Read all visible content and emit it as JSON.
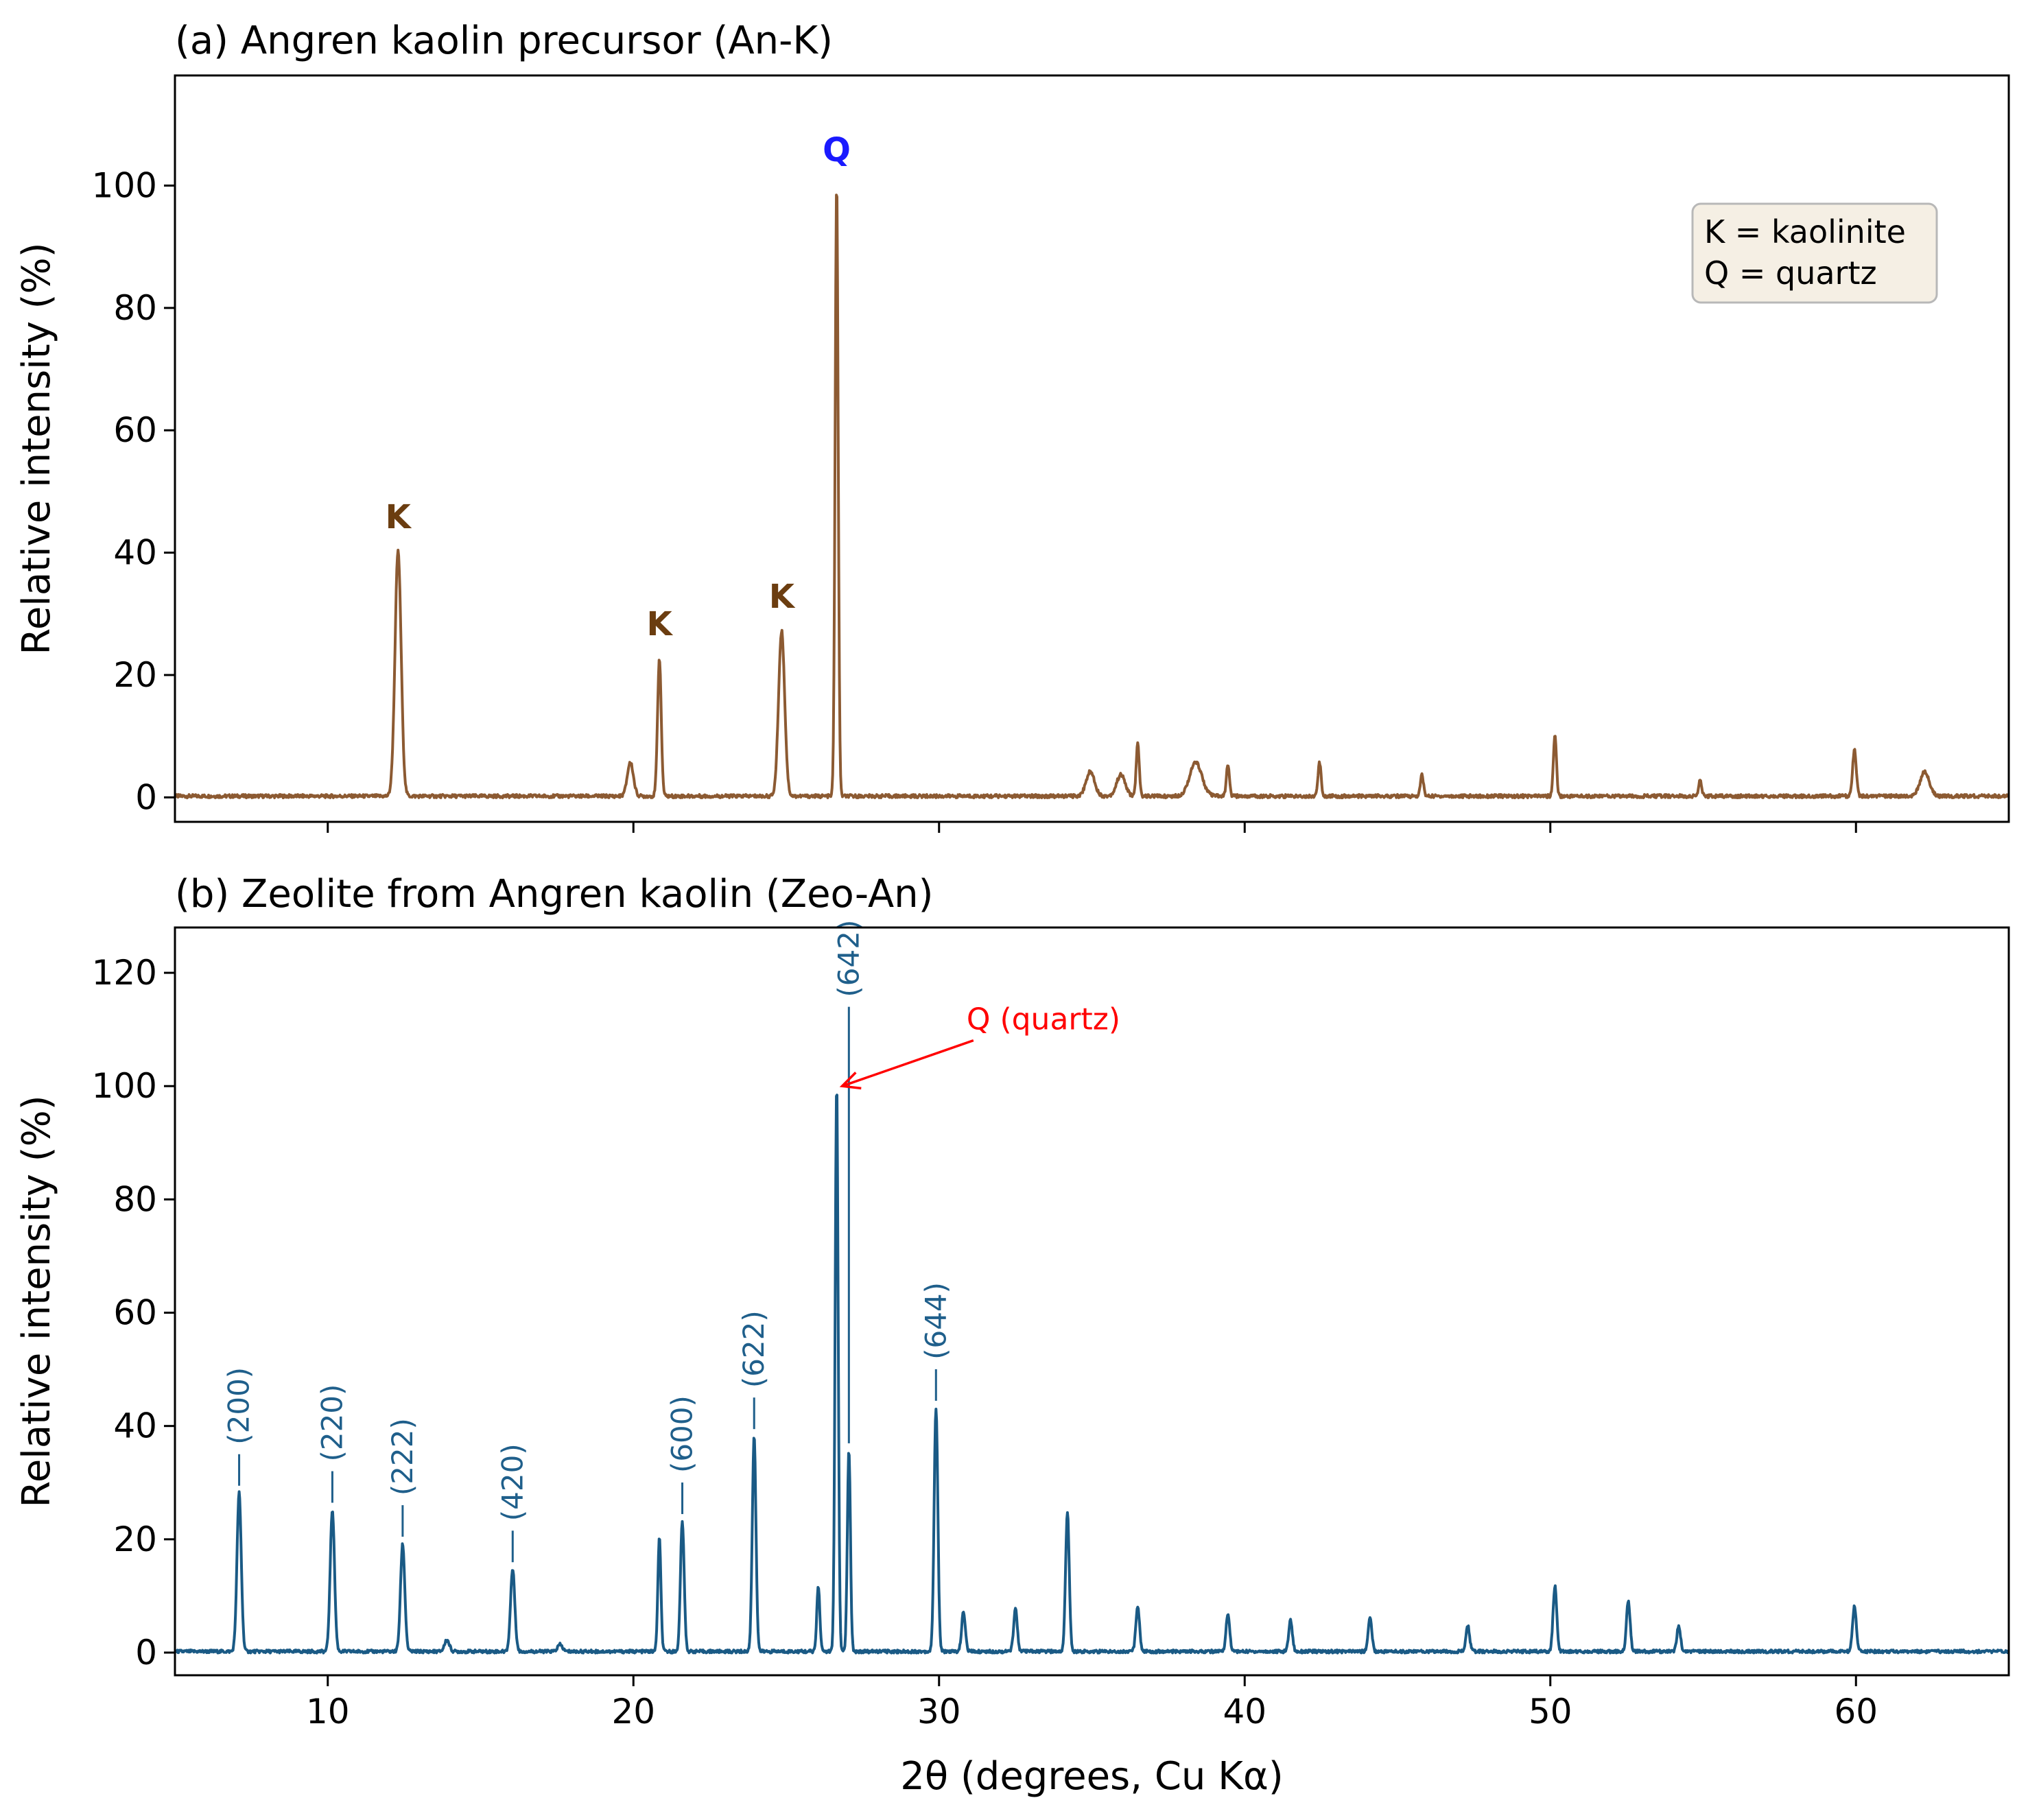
{
  "chart_data": [
    {
      "type": "line",
      "title": "(a) Angren kaolin precursor (An-K)",
      "xlabel": "",
      "ylabel": "Relative intensity (%)",
      "xlim": [
        5,
        65
      ],
      "ylim": [
        -4,
        118
      ],
      "yticks": [
        0,
        20,
        40,
        60,
        80,
        100
      ],
      "xticks": [
        10,
        20,
        30,
        40,
        50,
        60
      ],
      "show_xtick_labels": false,
      "grid": false,
      "color": "#8c5a32",
      "baseline": 0.2,
      "peaks": [
        {
          "x": 12.3,
          "y": 40,
          "w": 0.1
        },
        {
          "x": 19.9,
          "y": 5.5,
          "w": 0.1
        },
        {
          "x": 20.85,
          "y": 22.5,
          "w": 0.06
        },
        {
          "x": 24.85,
          "y": 27,
          "w": 0.1
        },
        {
          "x": 26.65,
          "y": 100,
          "w": 0.05
        },
        {
          "x": 34.95,
          "y": 4,
          "w": 0.14
        },
        {
          "x": 35.95,
          "y": 3.5,
          "w": 0.14
        },
        {
          "x": 36.5,
          "y": 8.5,
          "w": 0.05
        },
        {
          "x": 38.4,
          "y": 5.5,
          "w": 0.2
        },
        {
          "x": 39.45,
          "y": 5,
          "w": 0.05
        },
        {
          "x": 42.45,
          "y": 5.5,
          "w": 0.05
        },
        {
          "x": 45.8,
          "y": 3.5,
          "w": 0.05
        },
        {
          "x": 50.15,
          "y": 10,
          "w": 0.05
        },
        {
          "x": 54.9,
          "y": 2.5,
          "w": 0.05
        },
        {
          "x": 59.95,
          "y": 7.5,
          "w": 0.06
        },
        {
          "x": 62.25,
          "y": 4,
          "w": 0.15
        }
      ],
      "annotations": [
        {
          "text": "K",
          "x": 12.3,
          "y": 44,
          "phase": "kaolinite"
        },
        {
          "text": "K",
          "x": 20.85,
          "y": 26.5,
          "phase": "kaolinite"
        },
        {
          "text": "K",
          "x": 24.85,
          "y": 31,
          "phase": "kaolinite"
        },
        {
          "text": "Q",
          "x": 26.65,
          "y": 104,
          "phase": "quartz"
        }
      ],
      "legend": {
        "position": "top-right",
        "lines": [
          "K = kaolinite",
          "Q = quartz"
        ]
      }
    },
    {
      "type": "line",
      "title": "(b) Zeolite from Angren kaolin (Zeo-An)",
      "xlabel": "2θ (degrees, Cu Kα)",
      "ylabel": "Relative intensity (%)",
      "xlim": [
        5,
        65
      ],
      "ylim": [
        -4,
        128
      ],
      "yticks": [
        0,
        20,
        40,
        60,
        80,
        100,
        120
      ],
      "xticks": [
        10,
        20,
        30,
        40,
        50,
        60
      ],
      "xtick_labels": [
        "10",
        "20",
        "30",
        "40",
        "50",
        "60"
      ],
      "ytick_labels_a": [
        "0",
        "20",
        "40",
        "60",
        "80",
        "100"
      ],
      "ytick_labels_b": [
        "0",
        "20",
        "40",
        "60",
        "80",
        "100",
        "120"
      ],
      "grid": false,
      "color": "#1a5a85",
      "baseline": 0.2,
      "peaks": [
        {
          "x": 7.1,
          "y": 28,
          "w": 0.07
        },
        {
          "x": 10.15,
          "y": 25,
          "w": 0.07
        },
        {
          "x": 12.45,
          "y": 19,
          "w": 0.07
        },
        {
          "x": 13.9,
          "y": 2,
          "w": 0.08
        },
        {
          "x": 16.05,
          "y": 14.5,
          "w": 0.07
        },
        {
          "x": 17.6,
          "y": 1.2,
          "w": 0.08
        },
        {
          "x": 20.85,
          "y": 20,
          "w": 0.05
        },
        {
          "x": 21.6,
          "y": 23,
          "w": 0.06
        },
        {
          "x": 23.95,
          "y": 38,
          "w": 0.06
        },
        {
          "x": 26.05,
          "y": 11.5,
          "w": 0.05
        },
        {
          "x": 26.65,
          "y": 100,
          "w": 0.05
        },
        {
          "x": 27.05,
          "y": 35.5,
          "w": 0.05
        },
        {
          "x": 29.9,
          "y": 43,
          "w": 0.06
        },
        {
          "x": 30.8,
          "y": 7,
          "w": 0.06
        },
        {
          "x": 32.5,
          "y": 7.5,
          "w": 0.06
        },
        {
          "x": 34.2,
          "y": 24.5,
          "w": 0.06
        },
        {
          "x": 36.5,
          "y": 8,
          "w": 0.06
        },
        {
          "x": 39.45,
          "y": 6.5,
          "w": 0.06
        },
        {
          "x": 41.5,
          "y": 5.5,
          "w": 0.06
        },
        {
          "x": 44.1,
          "y": 6,
          "w": 0.06
        },
        {
          "x": 47.3,
          "y": 4.5,
          "w": 0.06
        },
        {
          "x": 50.15,
          "y": 11.5,
          "w": 0.06
        },
        {
          "x": 52.55,
          "y": 9,
          "w": 0.06
        },
        {
          "x": 54.2,
          "y": 4.5,
          "w": 0.06
        },
        {
          "x": 59.95,
          "y": 8,
          "w": 0.06
        }
      ],
      "hkl_labels": [
        {
          "text": "(200)",
          "x": 7.1,
          "peak_y": 28
        },
        {
          "text": "(220)",
          "x": 10.15,
          "peak_y": 25
        },
        {
          "text": "(222)",
          "x": 12.45,
          "peak_y": 19
        },
        {
          "text": "(420)",
          "x": 16.05,
          "peak_y": 14.5
        },
        {
          "text": "(600)",
          "x": 21.6,
          "peak_y": 23
        },
        {
          "text": "(622)",
          "x": 23.95,
          "peak_y": 38
        },
        {
          "text": "(642)",
          "x": 27.05,
          "peak_y": 35.5,
          "line_top_y": 114
        },
        {
          "text": "(644)",
          "x": 29.9,
          "peak_y": 43
        }
      ],
      "quartz_annotation": {
        "text": "Q (quartz)",
        "arrow_to": [
          26.65,
          100
        ],
        "text_at": [
          30.9,
          110
        ]
      }
    }
  ]
}
